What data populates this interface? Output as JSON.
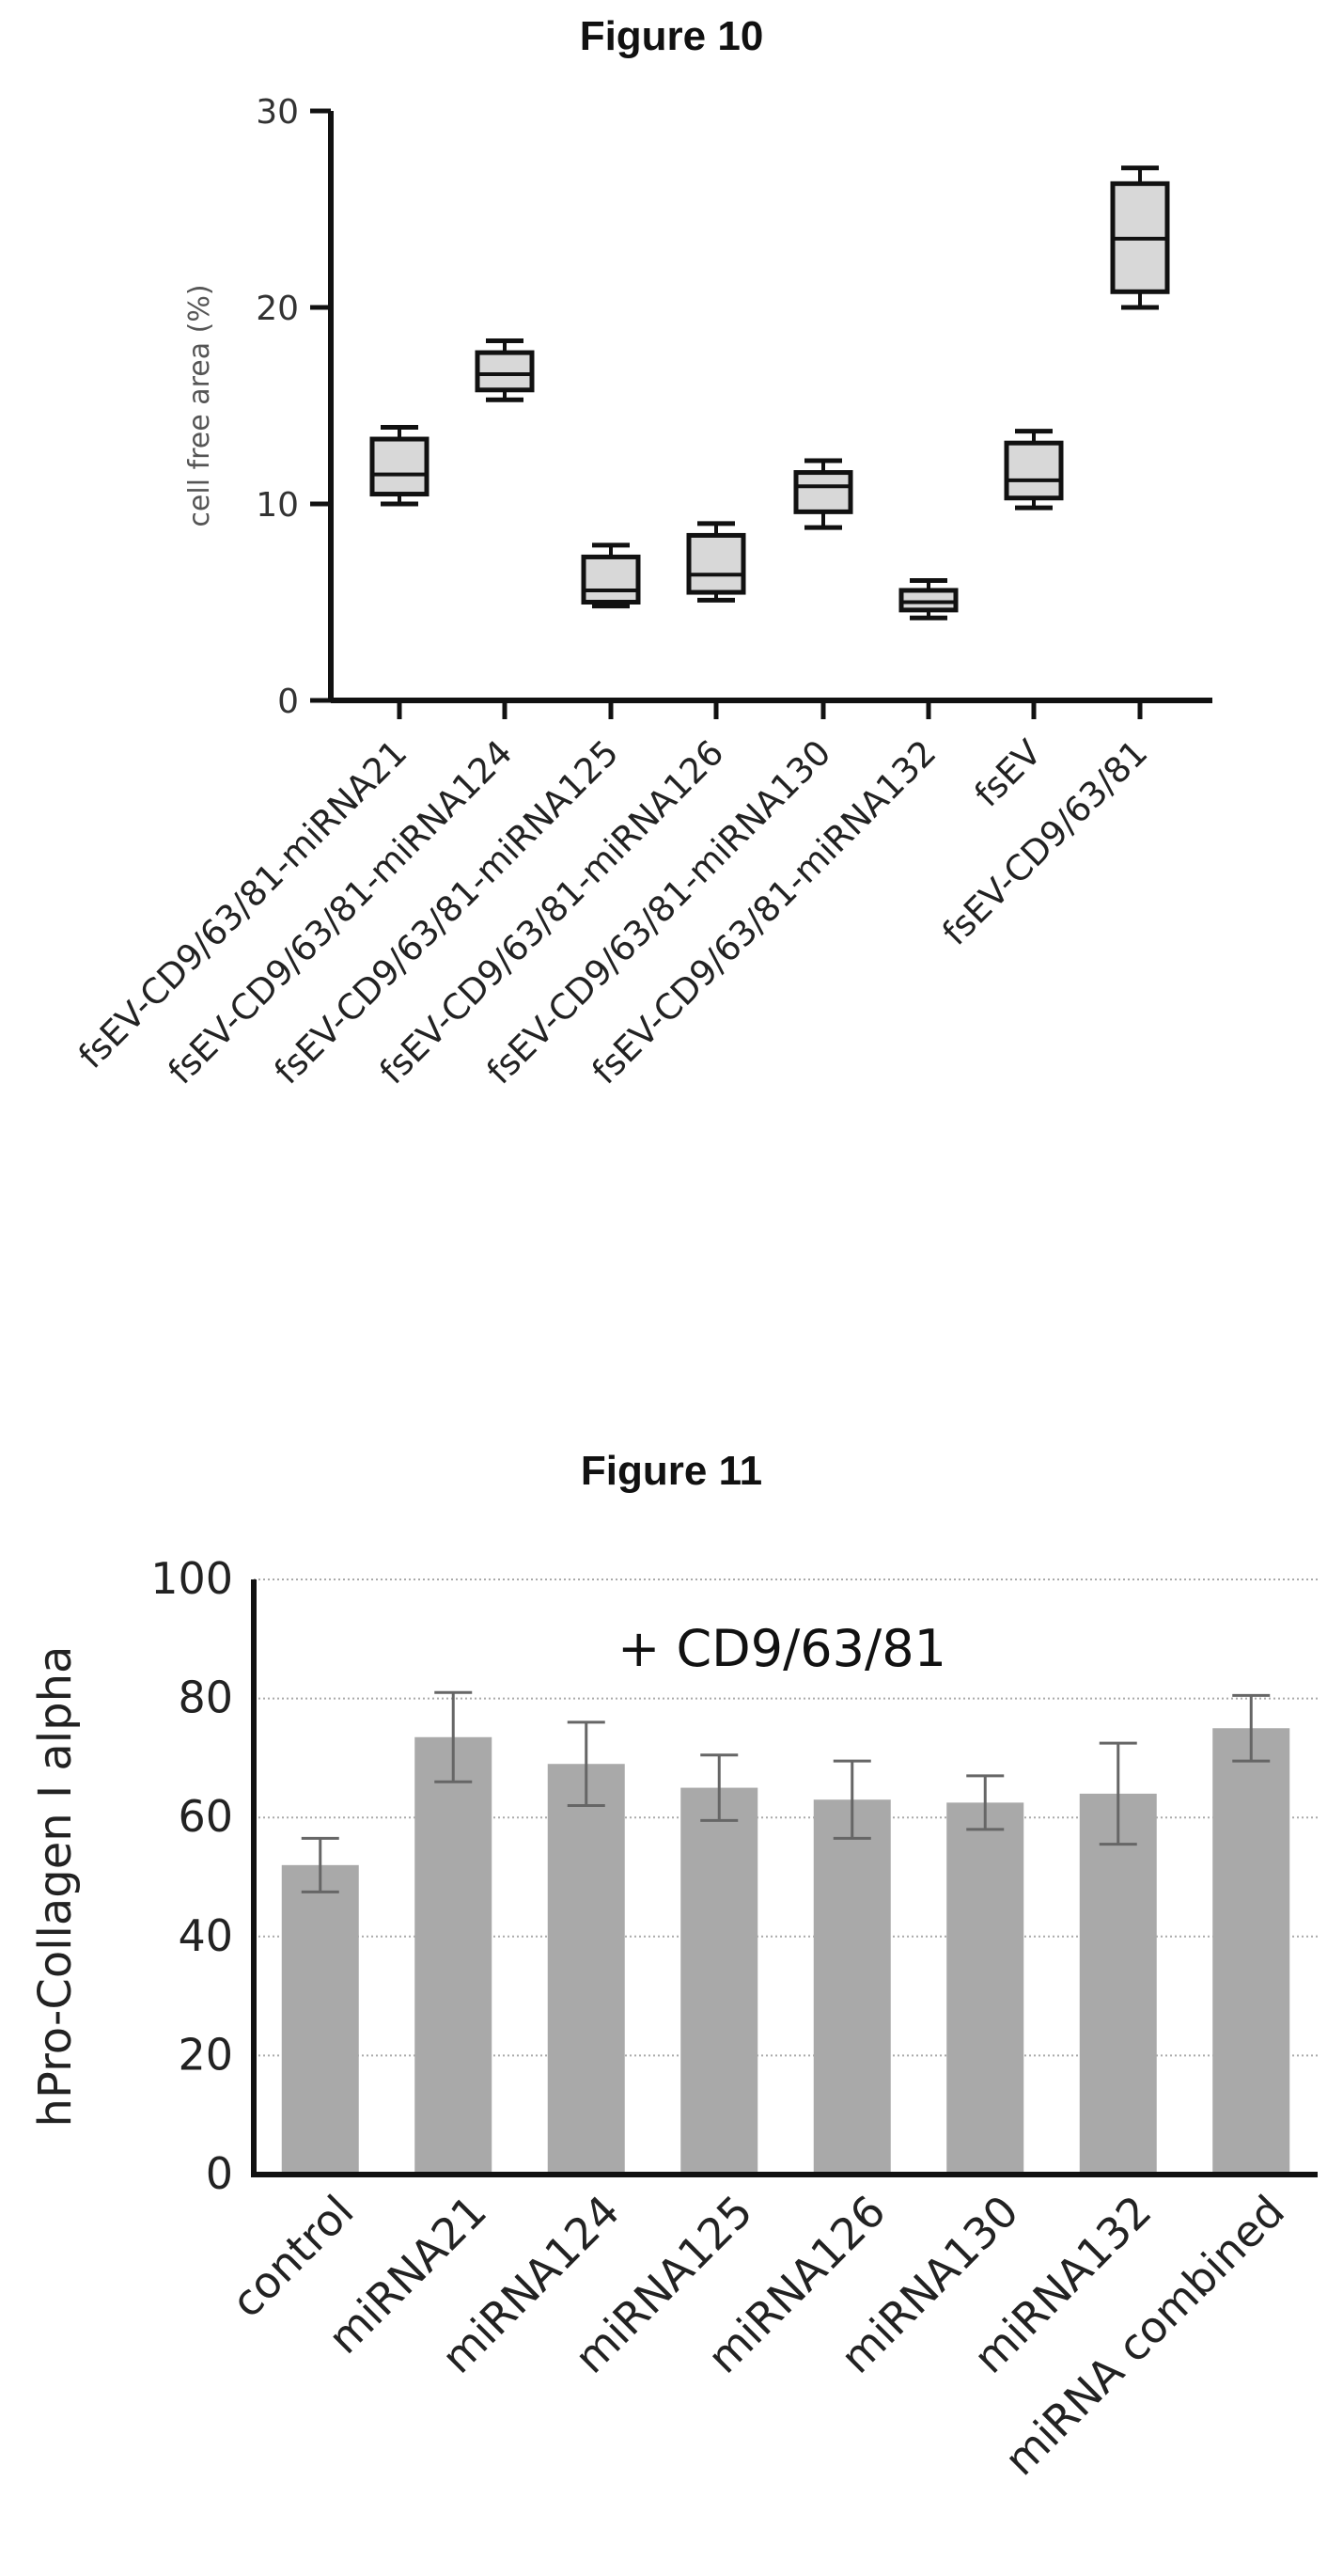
{
  "figure10": {
    "title": "Figure 10",
    "chart_data": {
      "type": "box",
      "ylabel": "cell free area (%)",
      "ylim": [
        0,
        30
      ],
      "yticks": [
        0,
        10,
        20,
        30
      ],
      "categories": [
        "fsEV-CD9/63/81-miRNA21",
        "fsEV-CD9/63/81-miRNA124",
        "fsEV-CD9/63/81-miRNA125",
        "fsEV-CD9/63/81-miRNA126",
        "fsEV-CD9/63/81-miRNA130",
        "fsEV-CD9/63/81-miRNA132",
        "fsEV",
        "fsEV-CD9/63/81"
      ],
      "boxes": [
        {
          "min": 10.0,
          "q1": 10.5,
          "median": 11.5,
          "q3": 13.3,
          "max": 13.9
        },
        {
          "min": 15.3,
          "q1": 15.8,
          "median": 16.6,
          "q3": 17.7,
          "max": 18.3
        },
        {
          "min": 4.8,
          "q1": 5.0,
          "median": 5.6,
          "q3": 7.3,
          "max": 7.9
        },
        {
          "min": 5.1,
          "q1": 5.5,
          "median": 6.4,
          "q3": 8.4,
          "max": 9.0
        },
        {
          "min": 8.8,
          "q1": 9.6,
          "median": 10.9,
          "q3": 11.6,
          "max": 12.2
        },
        {
          "min": 4.2,
          "q1": 4.6,
          "median": 5.0,
          "q3": 5.6,
          "max": 6.1
        },
        {
          "min": 9.8,
          "q1": 10.3,
          "median": 11.2,
          "q3": 13.1,
          "max": 13.7
        },
        {
          "min": 20.0,
          "q1": 20.8,
          "median": 23.5,
          "q3": 26.3,
          "max": 27.1
        }
      ],
      "grid": false,
      "box_fill": "#d8d8d8",
      "line_color": "#111111"
    }
  },
  "figure11": {
    "title": "Figure 11",
    "chart_data": {
      "type": "bar",
      "ylabel": "hPro-Collagen I alpha",
      "ylim": [
        0,
        100
      ],
      "yticks": [
        0,
        20,
        40,
        60,
        80,
        100
      ],
      "annotation": "+ CD9/63/81",
      "categories": [
        "control",
        "miRNA21",
        "miRNA124",
        "miRNA125",
        "miRNA126",
        "miRNA130",
        "miRNA132",
        "miRNA combined"
      ],
      "values": [
        52,
        73.5,
        69,
        65,
        63,
        62.5,
        64,
        75
      ],
      "error": [
        4.5,
        7.5,
        7,
        5.5,
        6.5,
        4.5,
        8.5,
        5.5
      ],
      "grid": true,
      "bar_color": "#a9a9a9",
      "error_color": "#666666"
    }
  }
}
